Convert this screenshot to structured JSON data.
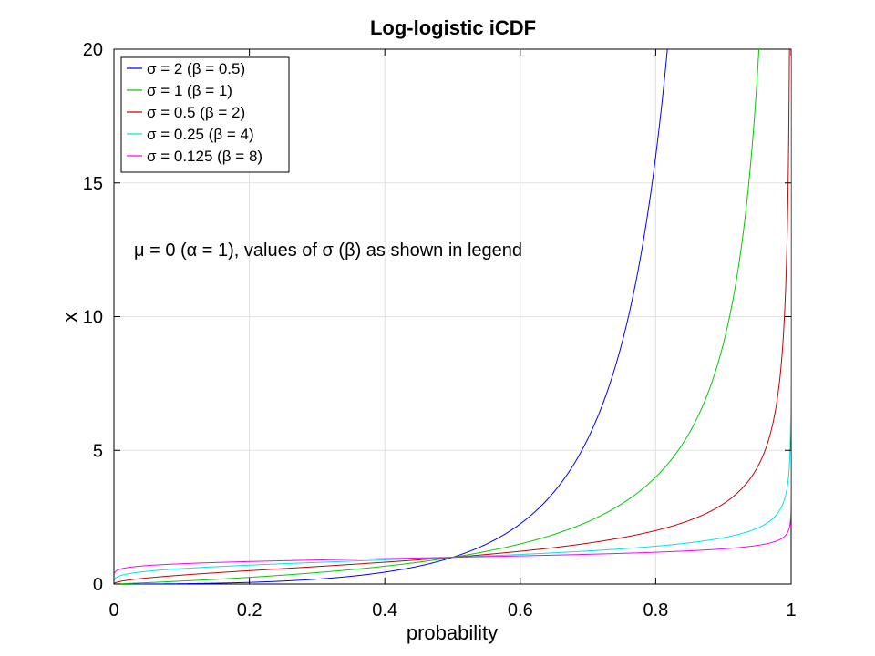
{
  "chart_data": {
    "type": "line",
    "title": "Log-logistic iCDF",
    "xlabel": "probability",
    "ylabel": "x",
    "xlim": [
      0,
      1
    ],
    "ylim": [
      0,
      20
    ],
    "xticks": [
      0,
      0.2,
      0.4,
      0.6,
      0.8,
      1
    ],
    "xtick_labels": [
      "0",
      "0.2",
      "0.4",
      "0.6",
      "0.8",
      "1"
    ],
    "yticks": [
      0,
      5,
      10,
      15,
      20
    ],
    "ytick_labels": [
      "0",
      "5",
      "10",
      "15",
      "20"
    ],
    "grid": true,
    "legend_position": "top-left",
    "annotation": "μ = 0 (α = 1), values of σ (β) as shown in legend",
    "function": "x = (p / (1 - p))^σ",
    "series": [
      {
        "name": "σ = 2 (β = 0.5)",
        "sigma": 2,
        "color": "#0000ff",
        "x": [
          0.05,
          0.1,
          0.2,
          0.3,
          0.4,
          0.5,
          0.6,
          0.7,
          0.75,
          0.8,
          0.817
        ],
        "y": [
          0.003,
          0.012,
          0.063,
          0.184,
          0.444,
          1.0,
          2.25,
          5.44,
          9.0,
          16.0,
          19.9
        ]
      },
      {
        "name": "σ = 1 (β = 1)",
        "sigma": 1,
        "color": "#00cc00",
        "x": [
          0.05,
          0.1,
          0.2,
          0.3,
          0.4,
          0.5,
          0.6,
          0.7,
          0.8,
          0.9,
          0.95
        ],
        "y": [
          0.053,
          0.111,
          0.25,
          0.429,
          0.667,
          1.0,
          1.5,
          2.33,
          4.0,
          9.0,
          19.0
        ]
      },
      {
        "name": "σ = 0.5 (β = 2)",
        "sigma": 0.5,
        "color": "#cc0000",
        "x": [
          0.05,
          0.1,
          0.2,
          0.3,
          0.4,
          0.5,
          0.6,
          0.7,
          0.8,
          0.9,
          0.95,
          0.99,
          0.9975
        ],
        "y": [
          0.229,
          0.333,
          0.5,
          0.655,
          0.816,
          1.0,
          1.22,
          1.53,
          2.0,
          3.0,
          4.36,
          9.95,
          19.97
        ]
      },
      {
        "name": "σ = 0.25 (β = 4)",
        "sigma": 0.25,
        "color": "#00e5e5",
        "x": [
          0.001,
          0.05,
          0.1,
          0.2,
          0.3,
          0.4,
          0.5,
          0.6,
          0.7,
          0.8,
          0.9,
          0.95,
          0.99,
          0.999
        ],
        "y": [
          0.18,
          0.479,
          0.577,
          0.707,
          0.809,
          0.904,
          1.0,
          1.107,
          1.236,
          1.414,
          1.732,
          2.088,
          3.154,
          5.62
        ]
      },
      {
        "name": "σ = 0.125 (β = 8)",
        "sigma": 0.125,
        "color": "#ff00ff",
        "x": [
          0.001,
          0.05,
          0.1,
          0.2,
          0.3,
          0.4,
          0.5,
          0.6,
          0.7,
          0.8,
          0.9,
          0.95,
          0.99,
          0.999
        ],
        "y": [
          0.42,
          0.692,
          0.76,
          0.841,
          0.9,
          0.951,
          1.0,
          1.052,
          1.112,
          1.189,
          1.316,
          1.445,
          1.776,
          2.37
        ]
      }
    ]
  }
}
